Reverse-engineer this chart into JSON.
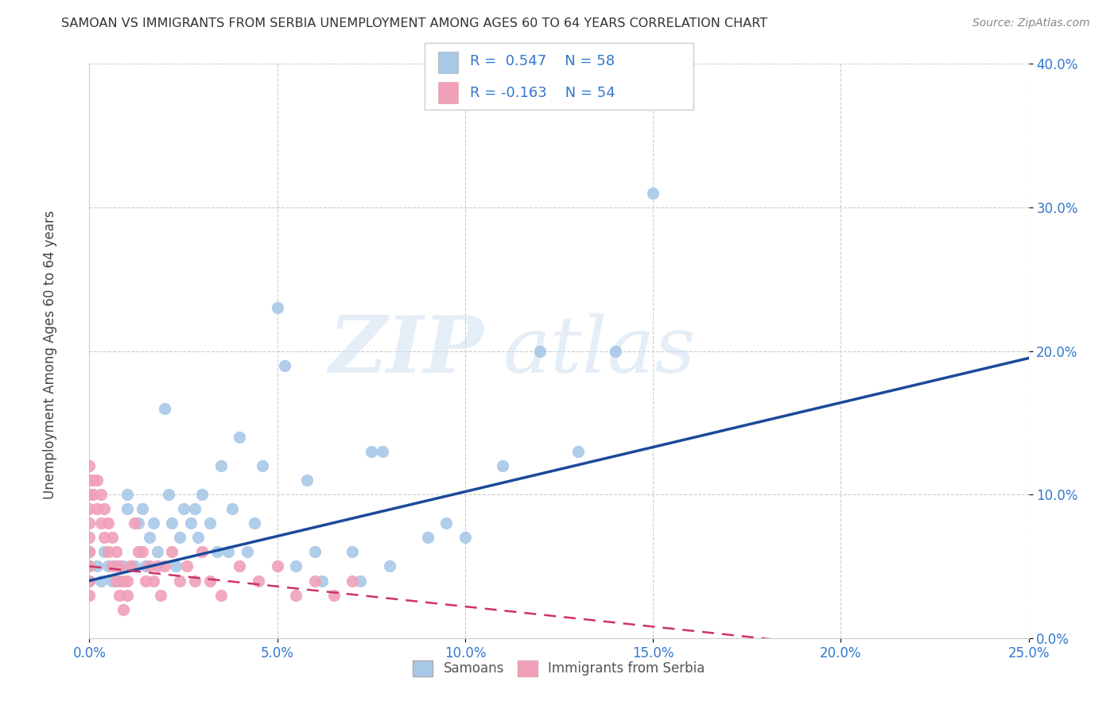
{
  "title": "SAMOAN VS IMMIGRANTS FROM SERBIA UNEMPLOYMENT AMONG AGES 60 TO 64 YEARS CORRELATION CHART",
  "source": "Source: ZipAtlas.com",
  "ylabel_label": "Unemployment Among Ages 60 to 64 years",
  "xlim": [
    0.0,
    0.25
  ],
  "ylim": [
    0.0,
    0.4
  ],
  "samoans_R": 0.547,
  "samoans_N": 58,
  "serbia_R": -0.163,
  "serbia_N": 54,
  "blue_color": "#a8c8e8",
  "blue_line_color": "#1a4a9a",
  "pink_color": "#f0a0b8",
  "pink_line_color": "#cc3366",
  "legend_label_1": "Samoans",
  "legend_label_2": "Immigrants from Serbia",
  "watermark_zip": "ZIP",
  "watermark_atlas": "atlas",
  "samoans_x": [
    0.0,
    0.0,
    0.0,
    0.002,
    0.003,
    0.004,
    0.005,
    0.006,
    0.007,
    0.008,
    0.009,
    0.01,
    0.01,
    0.012,
    0.013,
    0.014,
    0.015,
    0.016,
    0.017,
    0.018,
    0.02,
    0.021,
    0.022,
    0.023,
    0.024,
    0.025,
    0.027,
    0.028,
    0.029,
    0.03,
    0.032,
    0.034,
    0.035,
    0.037,
    0.038,
    0.04,
    0.042,
    0.044,
    0.046,
    0.05,
    0.052,
    0.055,
    0.058,
    0.06,
    0.062,
    0.07,
    0.072,
    0.075,
    0.078,
    0.08,
    0.09,
    0.095,
    0.1,
    0.11,
    0.12,
    0.13,
    0.14,
    0.15
  ],
  "samoans_y": [
    0.04,
    0.05,
    0.06,
    0.05,
    0.04,
    0.06,
    0.05,
    0.04,
    0.05,
    0.04,
    0.05,
    0.1,
    0.09,
    0.05,
    0.08,
    0.09,
    0.05,
    0.07,
    0.08,
    0.06,
    0.16,
    0.1,
    0.08,
    0.05,
    0.07,
    0.09,
    0.08,
    0.09,
    0.07,
    0.1,
    0.08,
    0.06,
    0.12,
    0.06,
    0.09,
    0.14,
    0.06,
    0.08,
    0.12,
    0.23,
    0.19,
    0.05,
    0.11,
    0.06,
    0.04,
    0.06,
    0.04,
    0.13,
    0.13,
    0.05,
    0.07,
    0.08,
    0.07,
    0.12,
    0.2,
    0.13,
    0.2,
    0.31
  ],
  "serbia_x": [
    0.0,
    0.0,
    0.0,
    0.0,
    0.0,
    0.0,
    0.0,
    0.0,
    0.0,
    0.0,
    0.001,
    0.001,
    0.002,
    0.002,
    0.003,
    0.003,
    0.004,
    0.004,
    0.005,
    0.005,
    0.006,
    0.006,
    0.007,
    0.007,
    0.008,
    0.008,
    0.009,
    0.009,
    0.01,
    0.01,
    0.011,
    0.012,
    0.013,
    0.014,
    0.015,
    0.016,
    0.017,
    0.018,
    0.019,
    0.02,
    0.022,
    0.024,
    0.026,
    0.028,
    0.03,
    0.032,
    0.035,
    0.04,
    0.045,
    0.05,
    0.055,
    0.06,
    0.065,
    0.07
  ],
  "serbia_y": [
    0.12,
    0.11,
    0.1,
    0.09,
    0.08,
    0.07,
    0.06,
    0.05,
    0.04,
    0.03,
    0.11,
    0.1,
    0.11,
    0.09,
    0.1,
    0.08,
    0.09,
    0.07,
    0.08,
    0.06,
    0.07,
    0.05,
    0.06,
    0.04,
    0.05,
    0.03,
    0.04,
    0.02,
    0.04,
    0.03,
    0.05,
    0.08,
    0.06,
    0.06,
    0.04,
    0.05,
    0.04,
    0.05,
    0.03,
    0.05,
    0.06,
    0.04,
    0.05,
    0.04,
    0.06,
    0.04,
    0.03,
    0.05,
    0.04,
    0.05,
    0.03,
    0.04,
    0.03,
    0.04
  ]
}
